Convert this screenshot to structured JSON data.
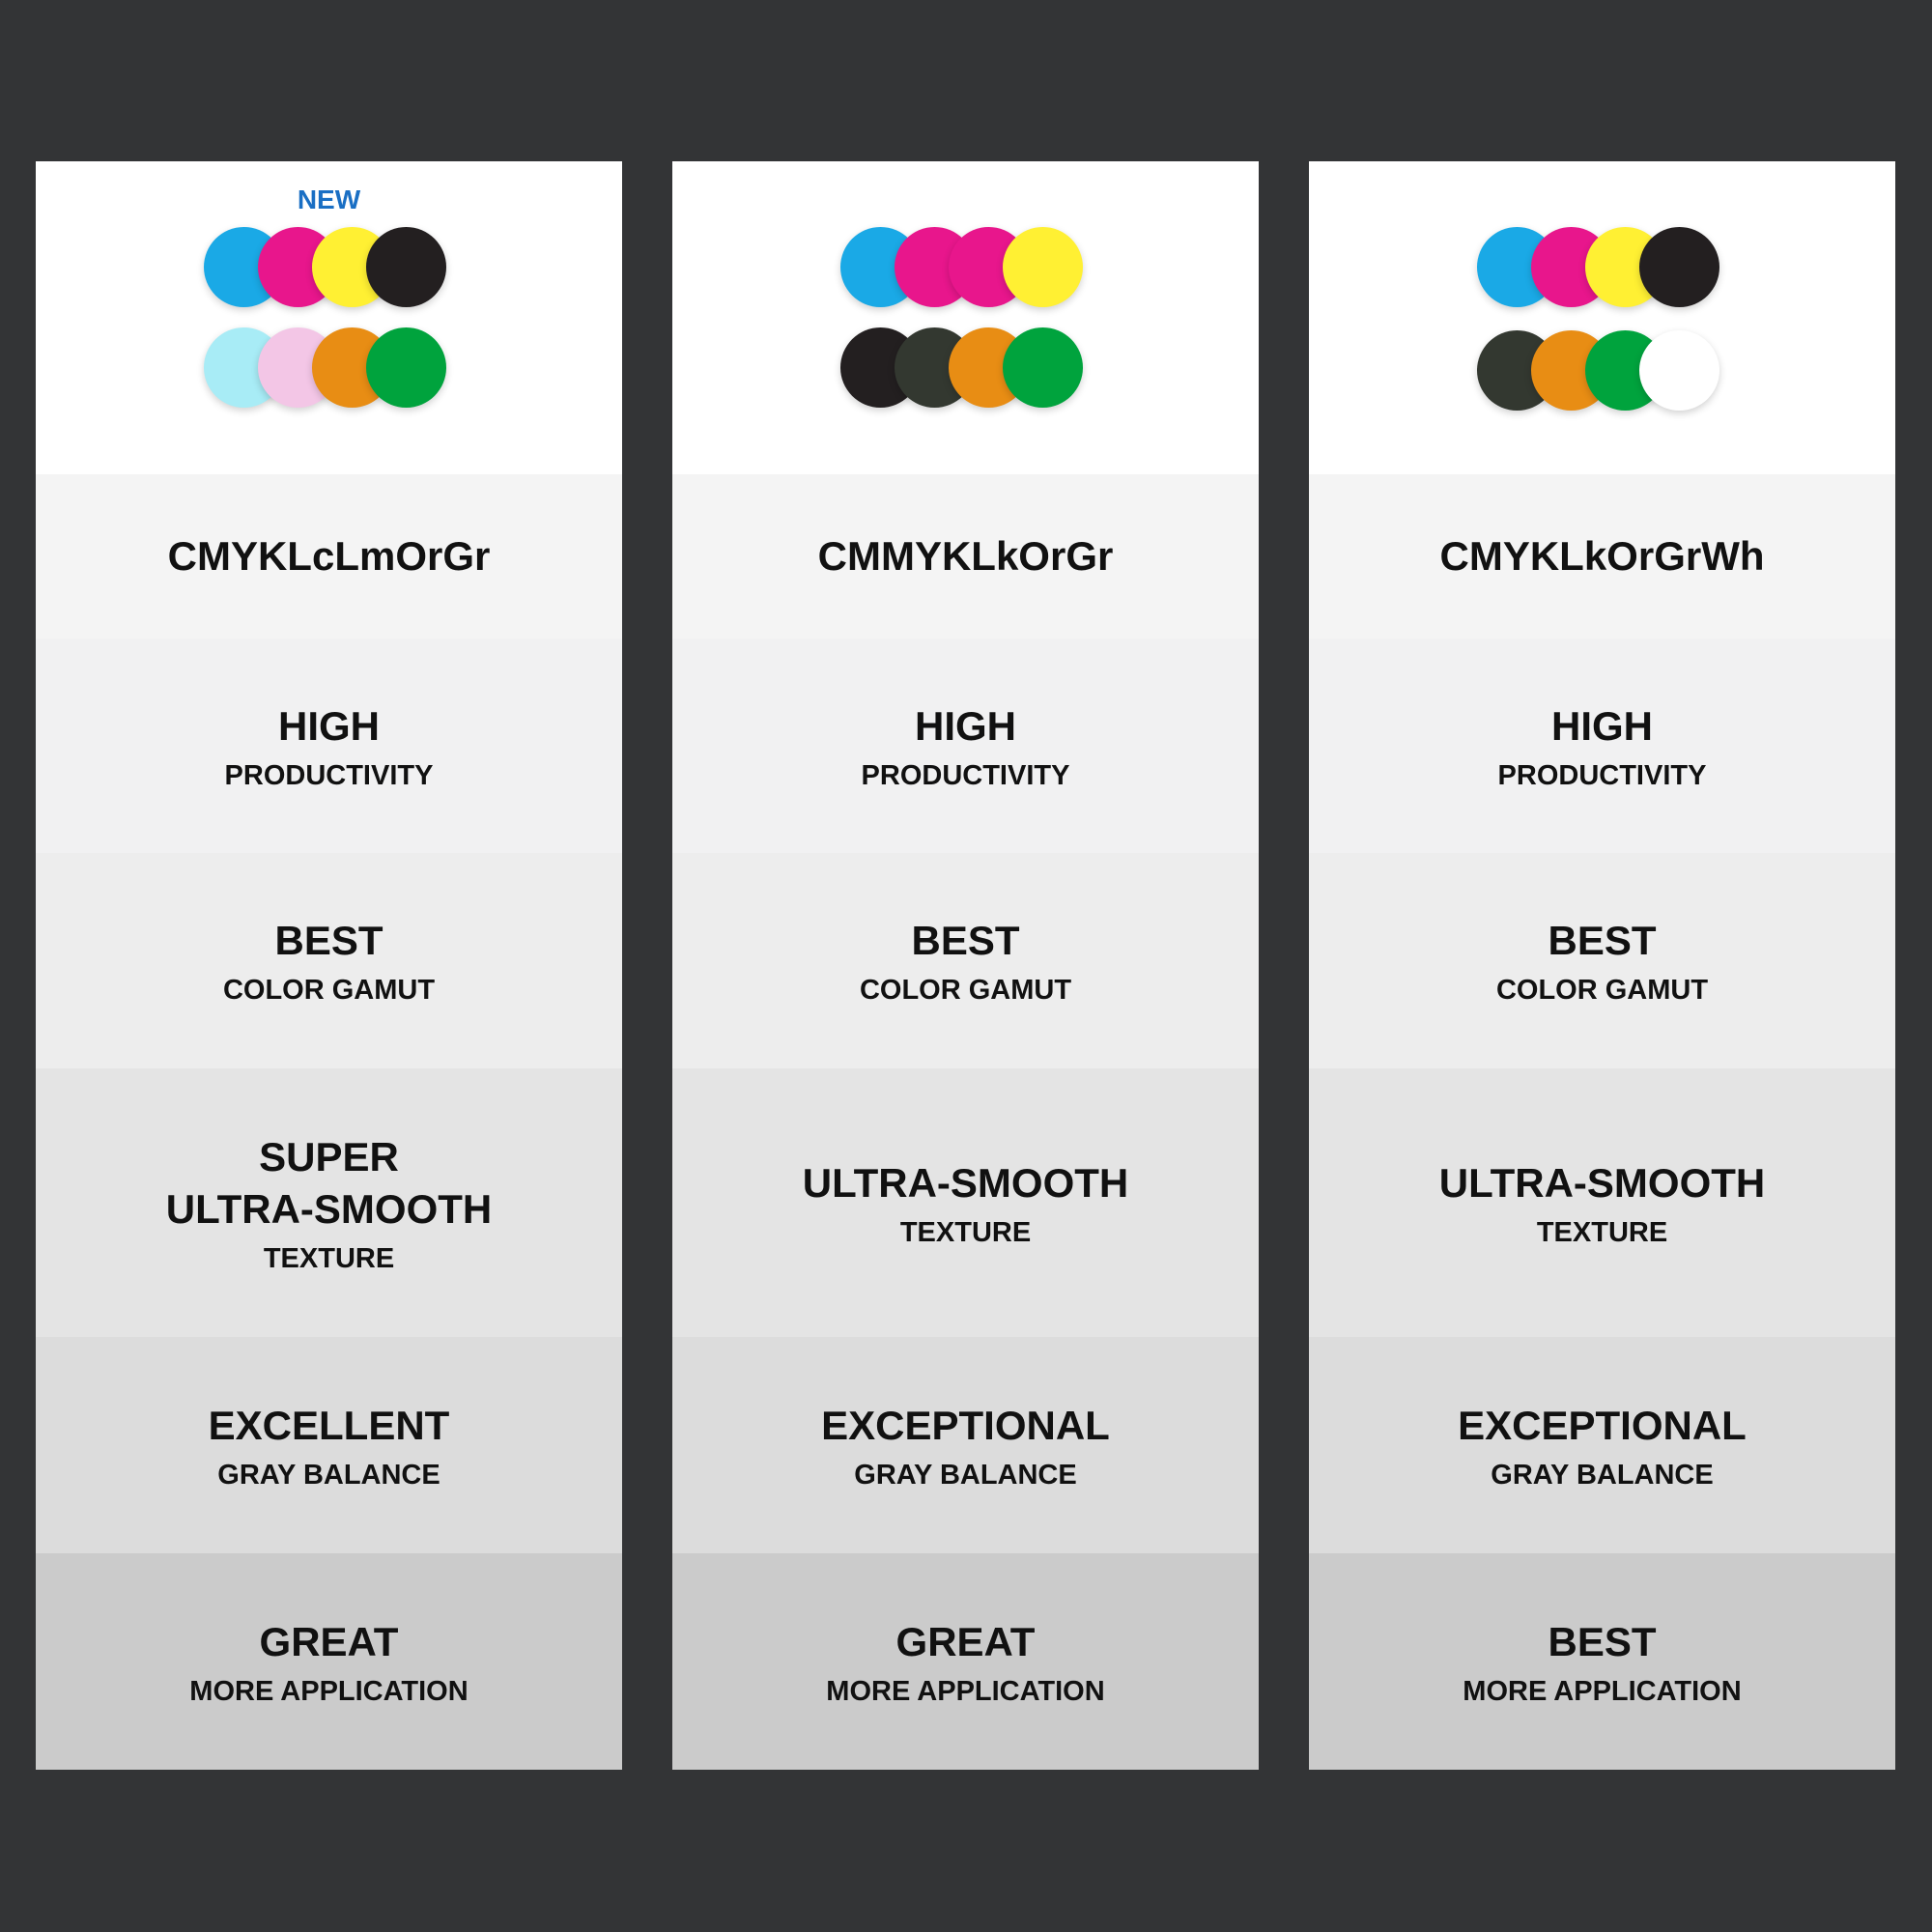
{
  "colors": {
    "cyan": "#1aa9e6",
    "magenta": "#e8168c",
    "yellow": "#fff033",
    "black": "#231f20",
    "light_cyan": "#a8ecf6",
    "light_magenta": "#f3c6e6",
    "orange": "#e88d14",
    "green": "#00a33d",
    "light_black": "#333830",
    "white": "#ffffff",
    "new_badge": "#1a6fc4"
  },
  "panels": [
    {
      "badge": "NEW",
      "inks": [
        [
          "cyan",
          "magenta",
          "yellow",
          "black"
        ],
        [
          "light_cyan",
          "light_magenta",
          "orange",
          "green"
        ]
      ],
      "name": "CMYKLcLmOrGr",
      "rows": [
        {
          "top": "",
          "main": "HIGH",
          "sub": "PRODUCTIVITY"
        },
        {
          "top": "",
          "main": "BEST",
          "sub": "COLOR GAMUT"
        },
        {
          "top": "SUPER",
          "main": "ULTRA-SMOOTH",
          "sub": "TEXTURE"
        },
        {
          "top": "",
          "main": "EXCELLENT",
          "sub": "GRAY BALANCE"
        },
        {
          "top": "",
          "main": "GREAT",
          "sub": "MORE APPLICATION"
        }
      ]
    },
    {
      "badge": "",
      "inks": [
        [
          "cyan",
          "magenta",
          "magenta",
          "yellow"
        ],
        [
          "black",
          "light_black",
          "orange",
          "green"
        ]
      ],
      "name": "CMMYKLkOrGr",
      "rows": [
        {
          "top": "",
          "main": "HIGH",
          "sub": "PRODUCTIVITY"
        },
        {
          "top": "",
          "main": "BEST",
          "sub": "COLOR GAMUT"
        },
        {
          "top": "",
          "main": "ULTRA-SMOOTH",
          "sub": "TEXTURE"
        },
        {
          "top": "",
          "main": "EXCEPTIONAL",
          "sub": "GRAY BALANCE"
        },
        {
          "top": "",
          "main": "GREAT",
          "sub": "MORE APPLICATION"
        }
      ]
    },
    {
      "badge": "",
      "inks": [
        [
          "cyan",
          "magenta",
          "yellow",
          "black"
        ],
        [
          "light_black",
          "orange",
          "green",
          "white"
        ]
      ],
      "name": "CMYKLkOrGrWh",
      "rows": [
        {
          "top": "",
          "main": "HIGH",
          "sub": "PRODUCTIVITY"
        },
        {
          "top": "",
          "main": "BEST",
          "sub": "COLOR GAMUT"
        },
        {
          "top": "",
          "main": "ULTRA-SMOOTH",
          "sub": "TEXTURE"
        },
        {
          "top": "",
          "main": "EXCEPTIONAL",
          "sub": "GRAY BALANCE"
        },
        {
          "top": "",
          "main": "BEST",
          "sub": "MORE APPLICATION"
        }
      ]
    }
  ]
}
